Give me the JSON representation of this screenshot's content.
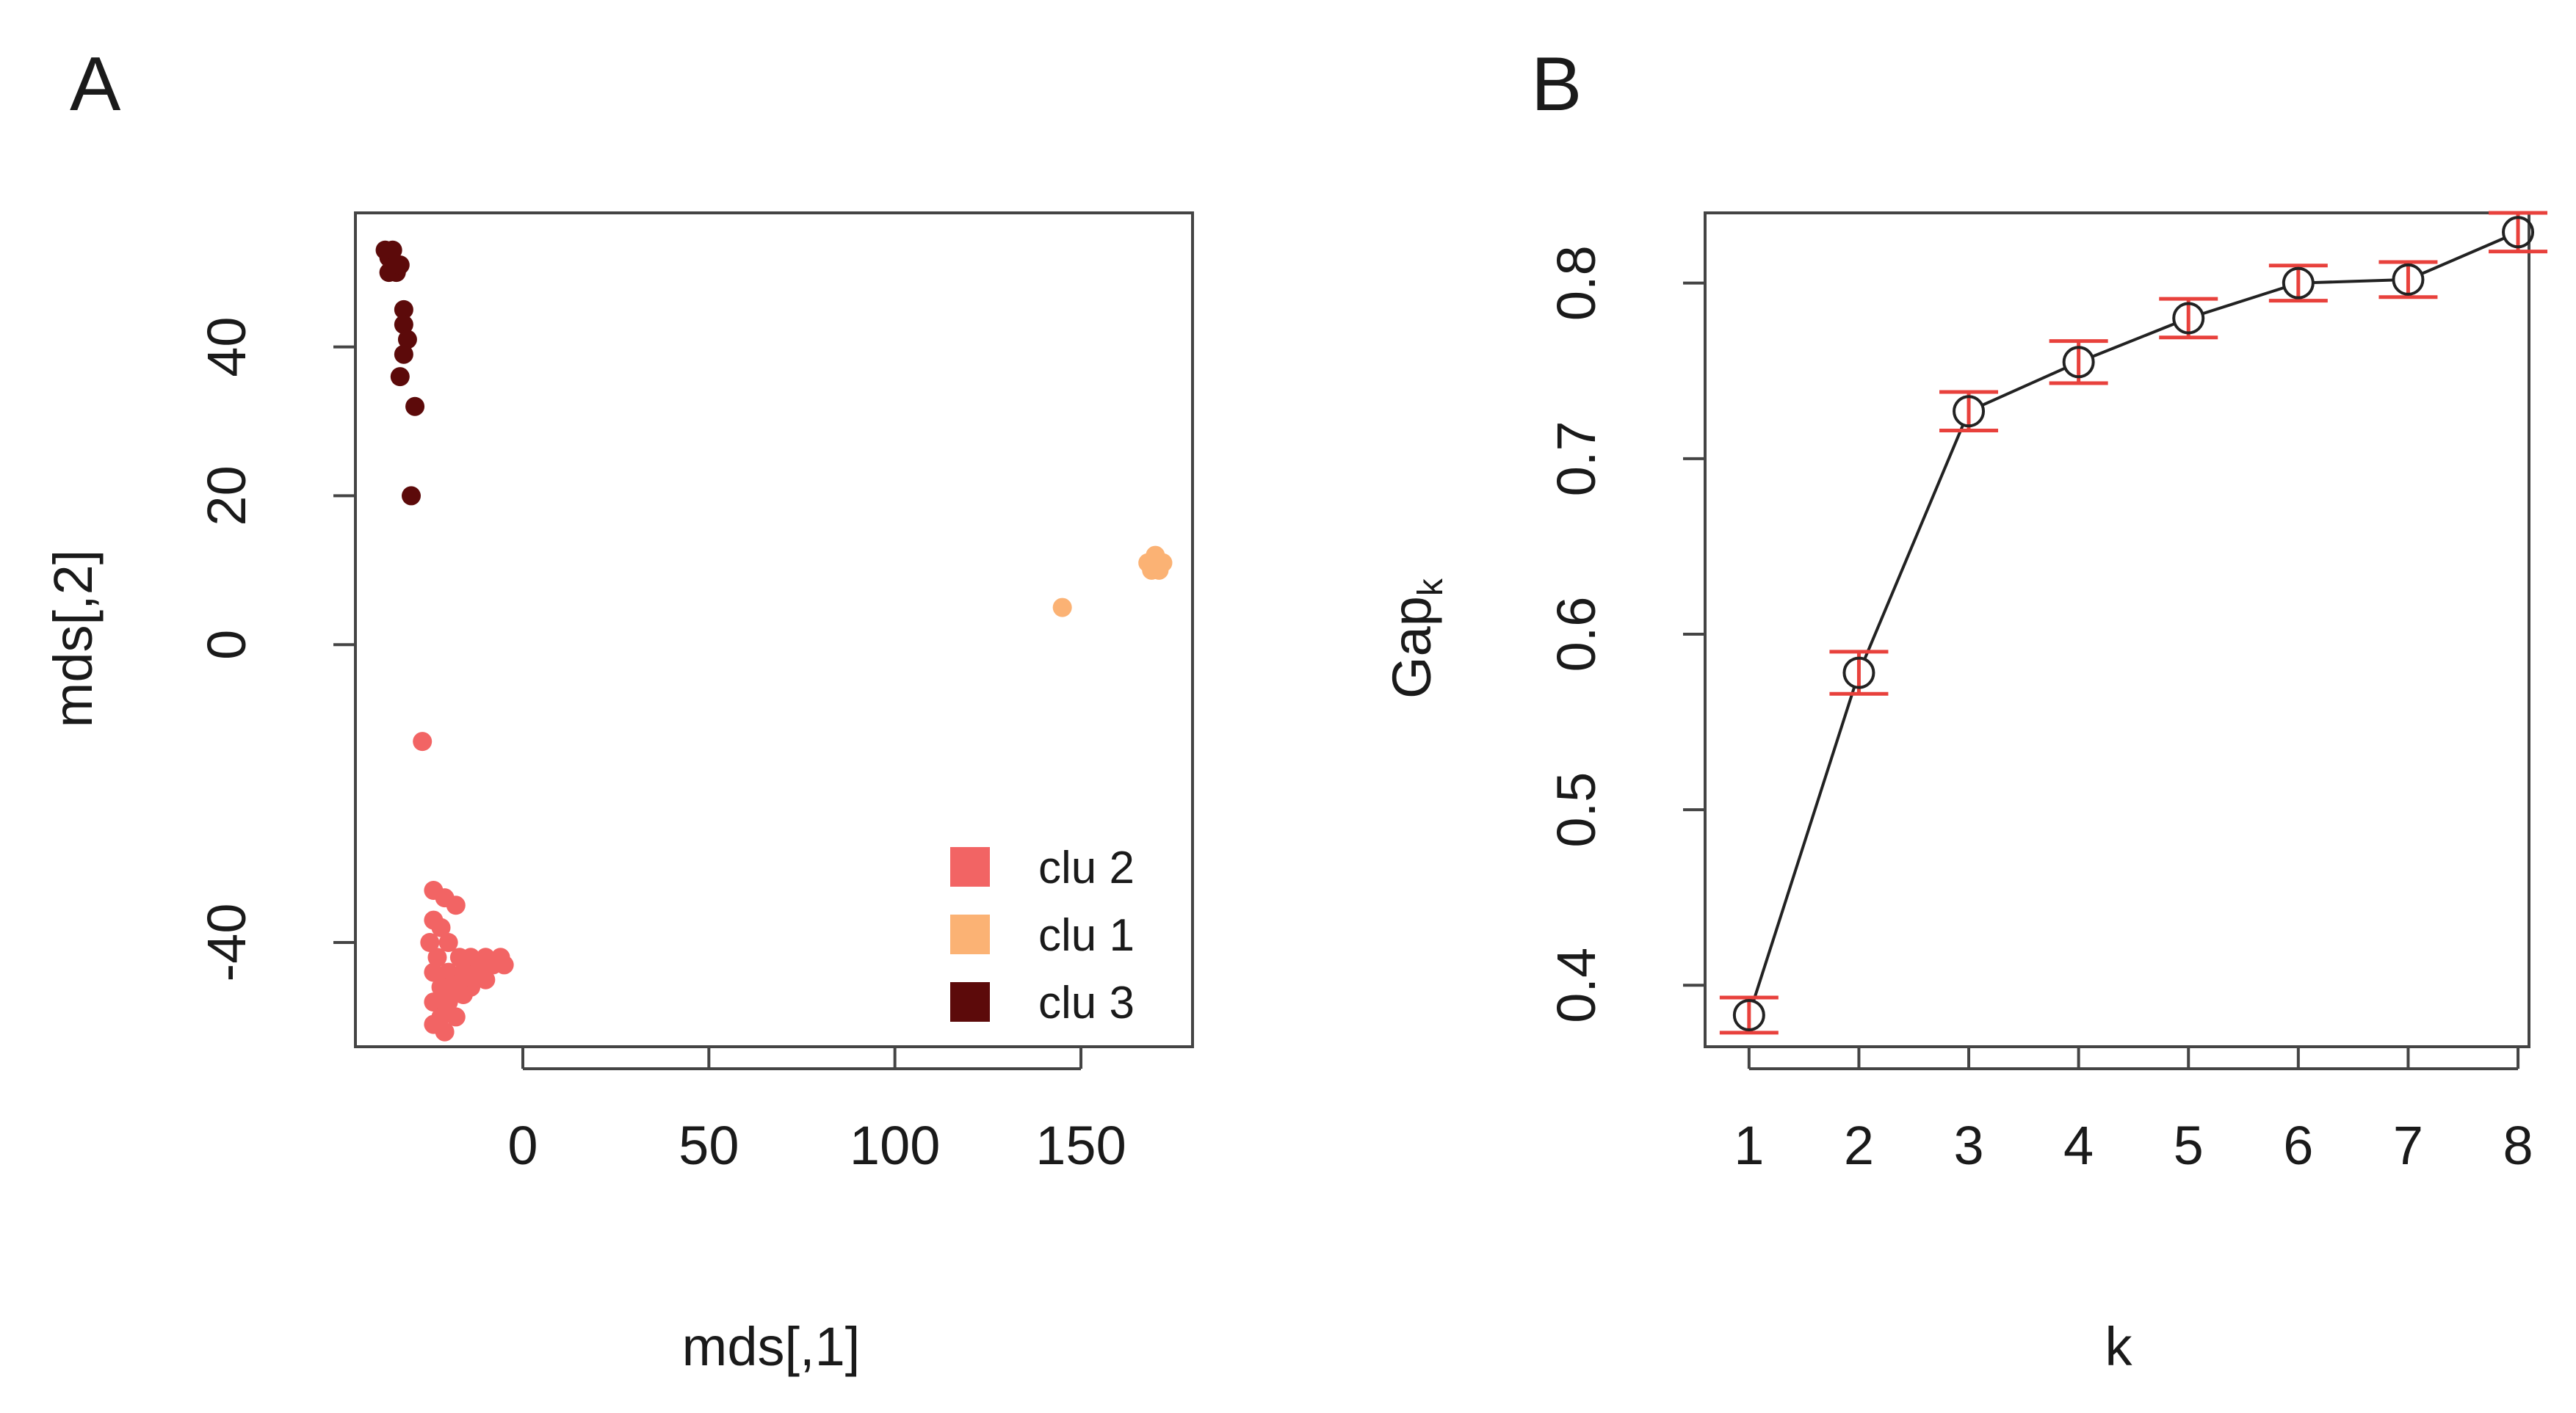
{
  "chart_data": [
    {
      "panel": "A",
      "type": "scatter",
      "title": "",
      "xlabel": "mds[,1]",
      "ylabel": "mds[,2]",
      "xlim": [
        -45,
        180
      ],
      "ylim": [
        -54,
        58
      ],
      "xticks": [
        0,
        50,
        100,
        150
      ],
      "xtick_labels": [
        "0",
        "50",
        "100",
        "150"
      ],
      "yticks": [
        -40,
        0,
        20,
        40
      ],
      "ytick_labels": [
        "-40",
        "0",
        "20",
        "40"
      ],
      "legend_position": "bottom-right",
      "series": [
        {
          "name": "clu 2",
          "color": "#f26464",
          "points": [
            [
              -27,
              -13
            ],
            [
              -24,
              -33
            ],
            [
              -21,
              -34
            ],
            [
              -18,
              -35
            ],
            [
              -24,
              -37
            ],
            [
              -22,
              -38
            ],
            [
              -25,
              -40
            ],
            [
              -20,
              -40
            ],
            [
              -23,
              -42
            ],
            [
              -17,
              -42
            ],
            [
              -14,
              -42
            ],
            [
              -10,
              -42
            ],
            [
              -6,
              -42
            ],
            [
              -24,
              -44
            ],
            [
              -20,
              -44
            ],
            [
              -16,
              -44
            ],
            [
              -12,
              -44
            ],
            [
              -8,
              -43
            ],
            [
              -5,
              -43
            ],
            [
              -22,
              -46
            ],
            [
              -18,
              -46
            ],
            [
              -14,
              -46
            ],
            [
              -10,
              -45
            ],
            [
              -24,
              -48
            ],
            [
              -20,
              -48
            ],
            [
              -16,
              -47
            ],
            [
              -22,
              -50
            ],
            [
              -18,
              -50
            ],
            [
              -21,
              -52
            ],
            [
              -24,
              -51
            ]
          ]
        },
        {
          "name": "clu 1",
          "color": "#fbb274",
          "points": [
            [
              145,
              5
            ],
            [
              168,
              11
            ],
            [
              170,
              11
            ],
            [
              172,
              11
            ],
            [
              169,
              10
            ],
            [
              171,
              10
            ],
            [
              170,
              12
            ]
          ]
        },
        {
          "name": "clu 3",
          "color": "#5c0a0a",
          "points": [
            [
              -37,
              53
            ],
            [
              -36,
              52
            ],
            [
              -35,
              51
            ],
            [
              -34,
              50
            ],
            [
              -36,
              50
            ],
            [
              -33,
              51
            ],
            [
              -35,
              53
            ],
            [
              -32,
              45
            ],
            [
              -32,
              43
            ],
            [
              -31,
              41
            ],
            [
              -32,
              39
            ],
            [
              -33,
              36
            ],
            [
              -29,
              32
            ],
            [
              -30,
              20
            ]
          ]
        }
      ]
    },
    {
      "panel": "B",
      "type": "line",
      "title": "",
      "xlabel": "k",
      "ylabel": "Gap",
      "ylabel_subscript": "k",
      "xlim": [
        0.6,
        8.1
      ],
      "ylim": [
        0.365,
        0.84
      ],
      "xticks": [
        1,
        2,
        3,
        4,
        5,
        6,
        7,
        8
      ],
      "xtick_labels": [
        "1",
        "2",
        "3",
        "4",
        "5",
        "6",
        "7",
        "8"
      ],
      "yticks": [
        0.4,
        0.5,
        0.6,
        0.7,
        0.8
      ],
      "ytick_labels": [
        "0.4",
        "0.5",
        "0.6",
        "0.7",
        "0.8"
      ],
      "x": [
        1,
        2,
        3,
        4,
        5,
        6,
        7,
        8
      ],
      "y": [
        0.383,
        0.578,
        0.727,
        0.755,
        0.78,
        0.8,
        0.802,
        0.829
      ],
      "err": [
        0.01,
        0.012,
        0.011,
        0.012,
        0.011,
        0.01,
        0.01,
        0.011
      ],
      "line_color": "#222222",
      "marker_color": "#222222",
      "errorbar_color": "#e8413c"
    }
  ],
  "panels": {
    "a_label": "A",
    "b_label": "B"
  }
}
